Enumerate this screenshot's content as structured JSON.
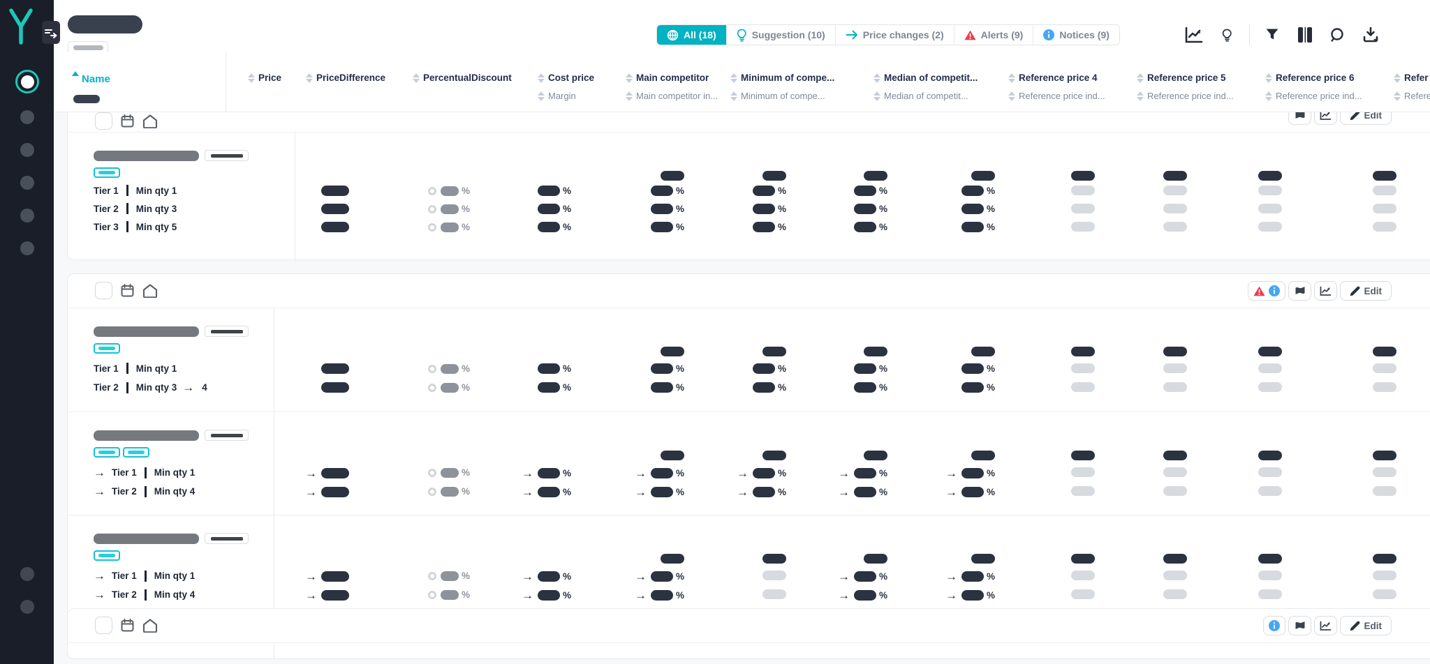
{
  "accent": {
    "teal": "#00b2c2",
    "logo_teal": "#1bc8ba",
    "red": "#ee3d4e",
    "blue": "#45a7f5",
    "pill_dark": "#2b3240"
  },
  "header": {
    "tabs": [
      {
        "key": "all",
        "label": "All (18)",
        "icon": "globe-icon",
        "active": true
      },
      {
        "key": "suggestion",
        "label": "Suggestion (10)",
        "icon": "bulb-icon",
        "active": false
      },
      {
        "key": "price-changes",
        "label": "Price changes (2)",
        "icon": "arrow-right-icon",
        "active": false
      },
      {
        "key": "alerts",
        "label": "Alerts (9)",
        "icon": "warning-icon",
        "active": false
      },
      {
        "key": "notices",
        "label": "Notices (9)",
        "icon": "info-icon",
        "active": false
      }
    ],
    "toolbar_icons": [
      "trend-chart-icon",
      "bulb-icon",
      "separator",
      "filter-icon",
      "columns-icon",
      "search-icon",
      "download-icon"
    ]
  },
  "table": {
    "name_header": "Name",
    "columns": [
      {
        "line1": "Price",
        "line2": ""
      },
      {
        "line1": "PriceDifference",
        "line2": ""
      },
      {
        "line1": "PercentualDiscount",
        "line2": ""
      },
      {
        "line1": "Cost price",
        "line2": "Margin"
      },
      {
        "line1": "Main competitor",
        "line2": "Main competitor in..."
      },
      {
        "line1": "Minimum of compe...",
        "line2": "Minimum of compe..."
      },
      {
        "line1": "Median of competit...",
        "line2": "Median of competit..."
      },
      {
        "line1": "Reference price 4",
        "line2": "Reference price ind..."
      },
      {
        "line1": "Reference price 5",
        "line2": "Reference price ind..."
      },
      {
        "line1": "Reference price 6",
        "line2": "Reference price ind..."
      },
      {
        "line1": "Refer",
        "line2": "Refere"
      }
    ]
  },
  "buttons": {
    "edit_label": "Edit"
  },
  "groups": [
    {
      "clipped_top": true,
      "name_col_width": 326,
      "header_badges": [],
      "header_buttons": [
        "flag",
        "chart",
        "edit"
      ],
      "subrows": [
        {
          "badges": 1,
          "top_row": true,
          "tiers": [
            {
              "arrow": false,
              "label": "Tier 1",
              "qty": "Min qty 1"
            },
            {
              "arrow": false,
              "label": "Tier 2",
              "qty": "Min qty 3"
            },
            {
              "arrow": false,
              "label": "Tier 3",
              "qty": "Min qty 5"
            }
          ],
          "cells": [
            "P",
            "D",
            "K",
            "K",
            "K",
            "K",
            "K",
            "L",
            "L",
            "L",
            "L"
          ]
        }
      ]
    },
    {
      "clipped_top": false,
      "name_col_width": 296,
      "header_badges": [
        "warning",
        "info"
      ],
      "header_buttons": [
        "flag",
        "chart",
        "edit"
      ],
      "subrows": [
        {
          "badges": 1,
          "top_row": true,
          "tiers": [
            {
              "arrow": false,
              "label": "Tier 1",
              "qty": "Min qty 1"
            },
            {
              "arrow": false,
              "label": "Tier 2",
              "qty": "Min qty 3",
              "change_to": "4"
            }
          ],
          "cells": [
            "P",
            "D",
            "K",
            "K",
            "K",
            "K",
            "K",
            "L",
            "L",
            "L",
            "L"
          ]
        },
        {
          "badges": 2,
          "top_row": true,
          "tiers": [
            {
              "arrow": true,
              "label": "Tier 1",
              "qty": "Min qty 1"
            },
            {
              "arrow": true,
              "label": "Tier 2",
              "qty": "Min qty 4"
            }
          ],
          "cells": [
            "AP",
            "D",
            "AK",
            "AK",
            "AK",
            "AK",
            "AK",
            "L",
            "L",
            "L",
            "L"
          ]
        },
        {
          "badges": 1,
          "top_row": true,
          "tiers": [
            {
              "arrow": true,
              "label": "Tier 1",
              "qty": "Min qty 1"
            },
            {
              "arrow": true,
              "label": "Tier 2",
              "qty": "Min qty 4"
            }
          ],
          "cells": [
            "AP",
            "D",
            "AK",
            "AK",
            "L",
            "AK",
            "AK",
            "L",
            "L",
            "L",
            "L"
          ]
        }
      ]
    },
    {
      "clipped_top": false,
      "name_col_width": 296,
      "header_badges": [
        "info"
      ],
      "header_buttons": [
        "flag",
        "chart",
        "edit"
      ],
      "subrows": [
        {
          "stub": true
        }
      ]
    }
  ]
}
